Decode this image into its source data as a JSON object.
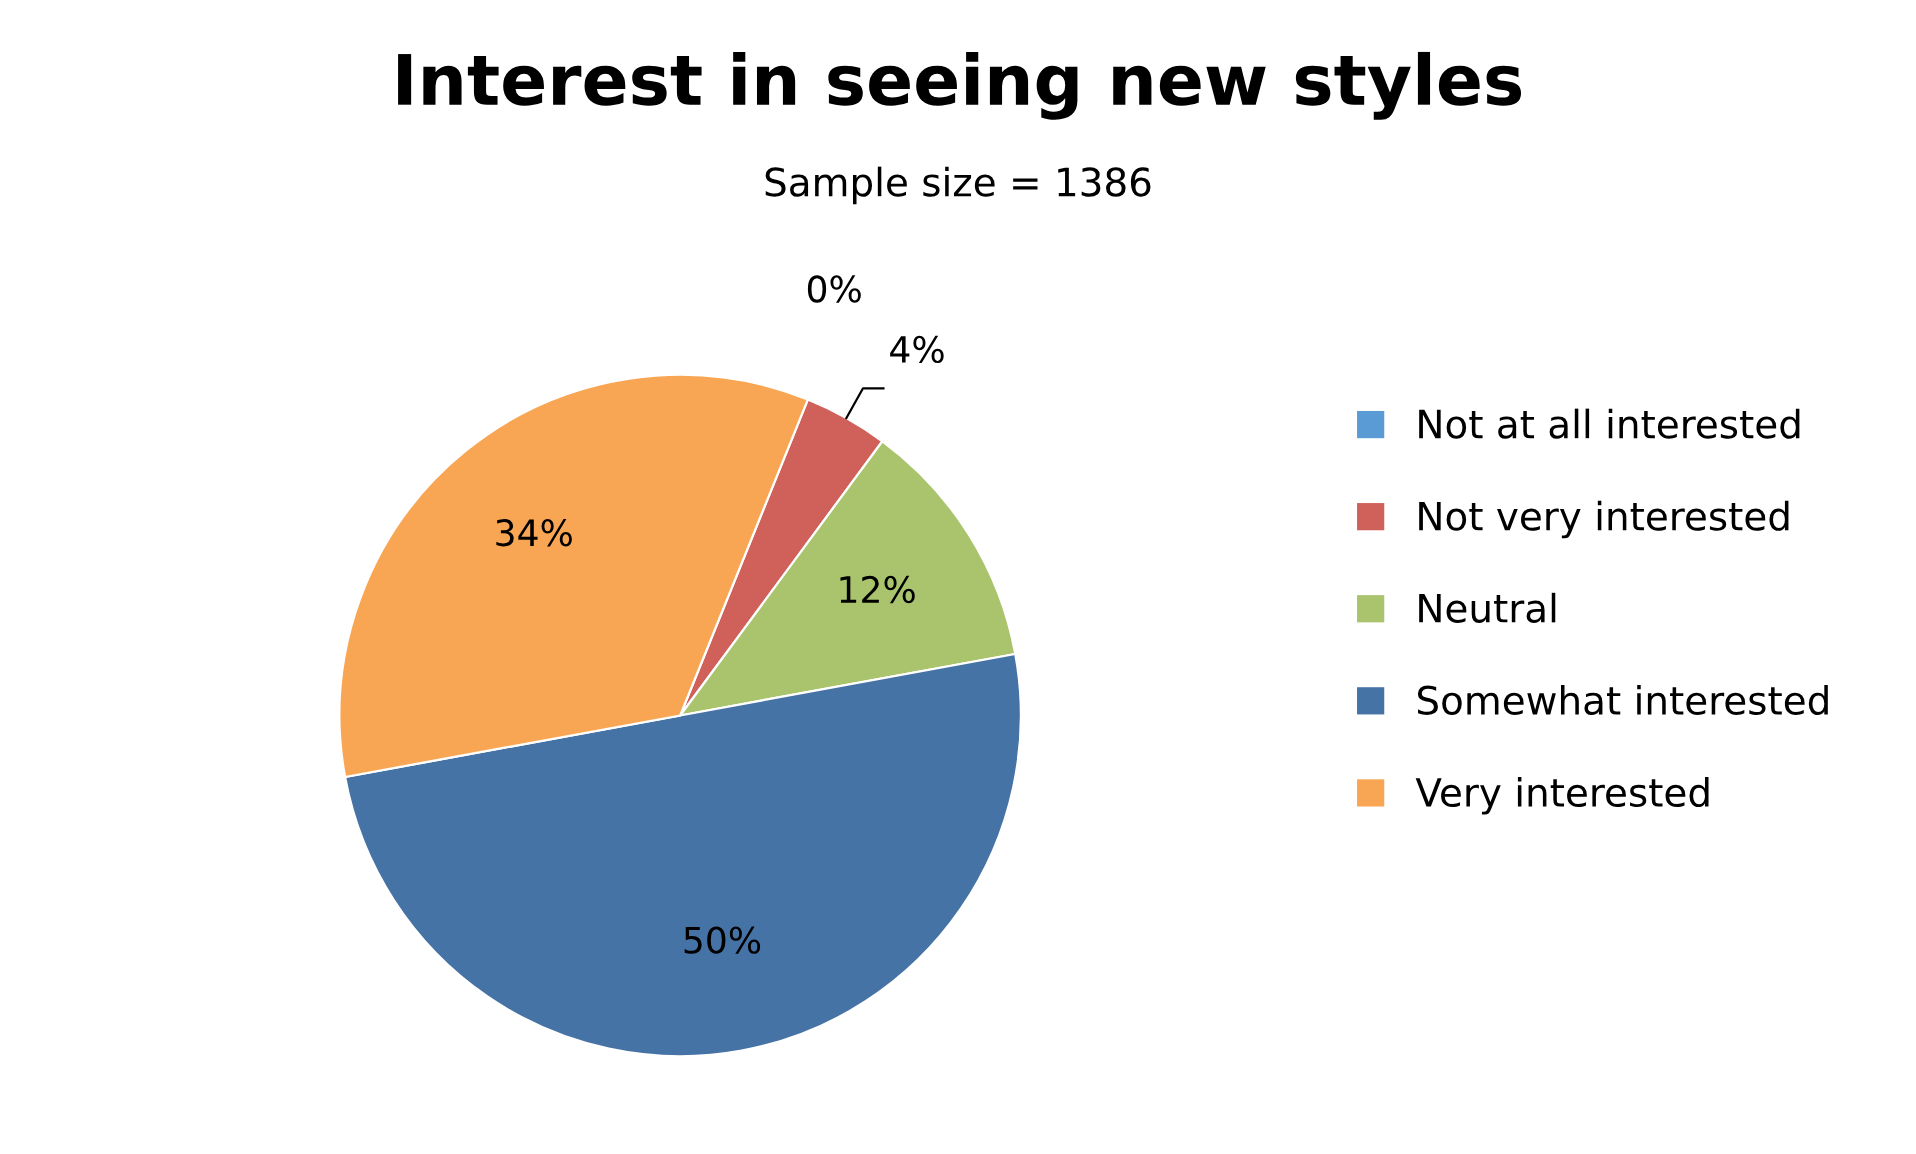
{
  "chart_data": {
    "type": "pie",
    "title": "Interest in seeing new styles",
    "subtitle": "Sample size = 1386",
    "categories": [
      "Not at all interested",
      "Not very interested",
      "Neutral",
      "Somewhat interested",
      "Very interested"
    ],
    "values": [
      0,
      4,
      12,
      50,
      34
    ],
    "colors": [
      "#5b9bd5",
      "#d0605a",
      "#a9c46c",
      "#4673a6",
      "#f9a654"
    ],
    "value_labels": [
      "0%",
      "4%",
      "12%",
      "50%",
      "34%"
    ],
    "legend": "right"
  }
}
